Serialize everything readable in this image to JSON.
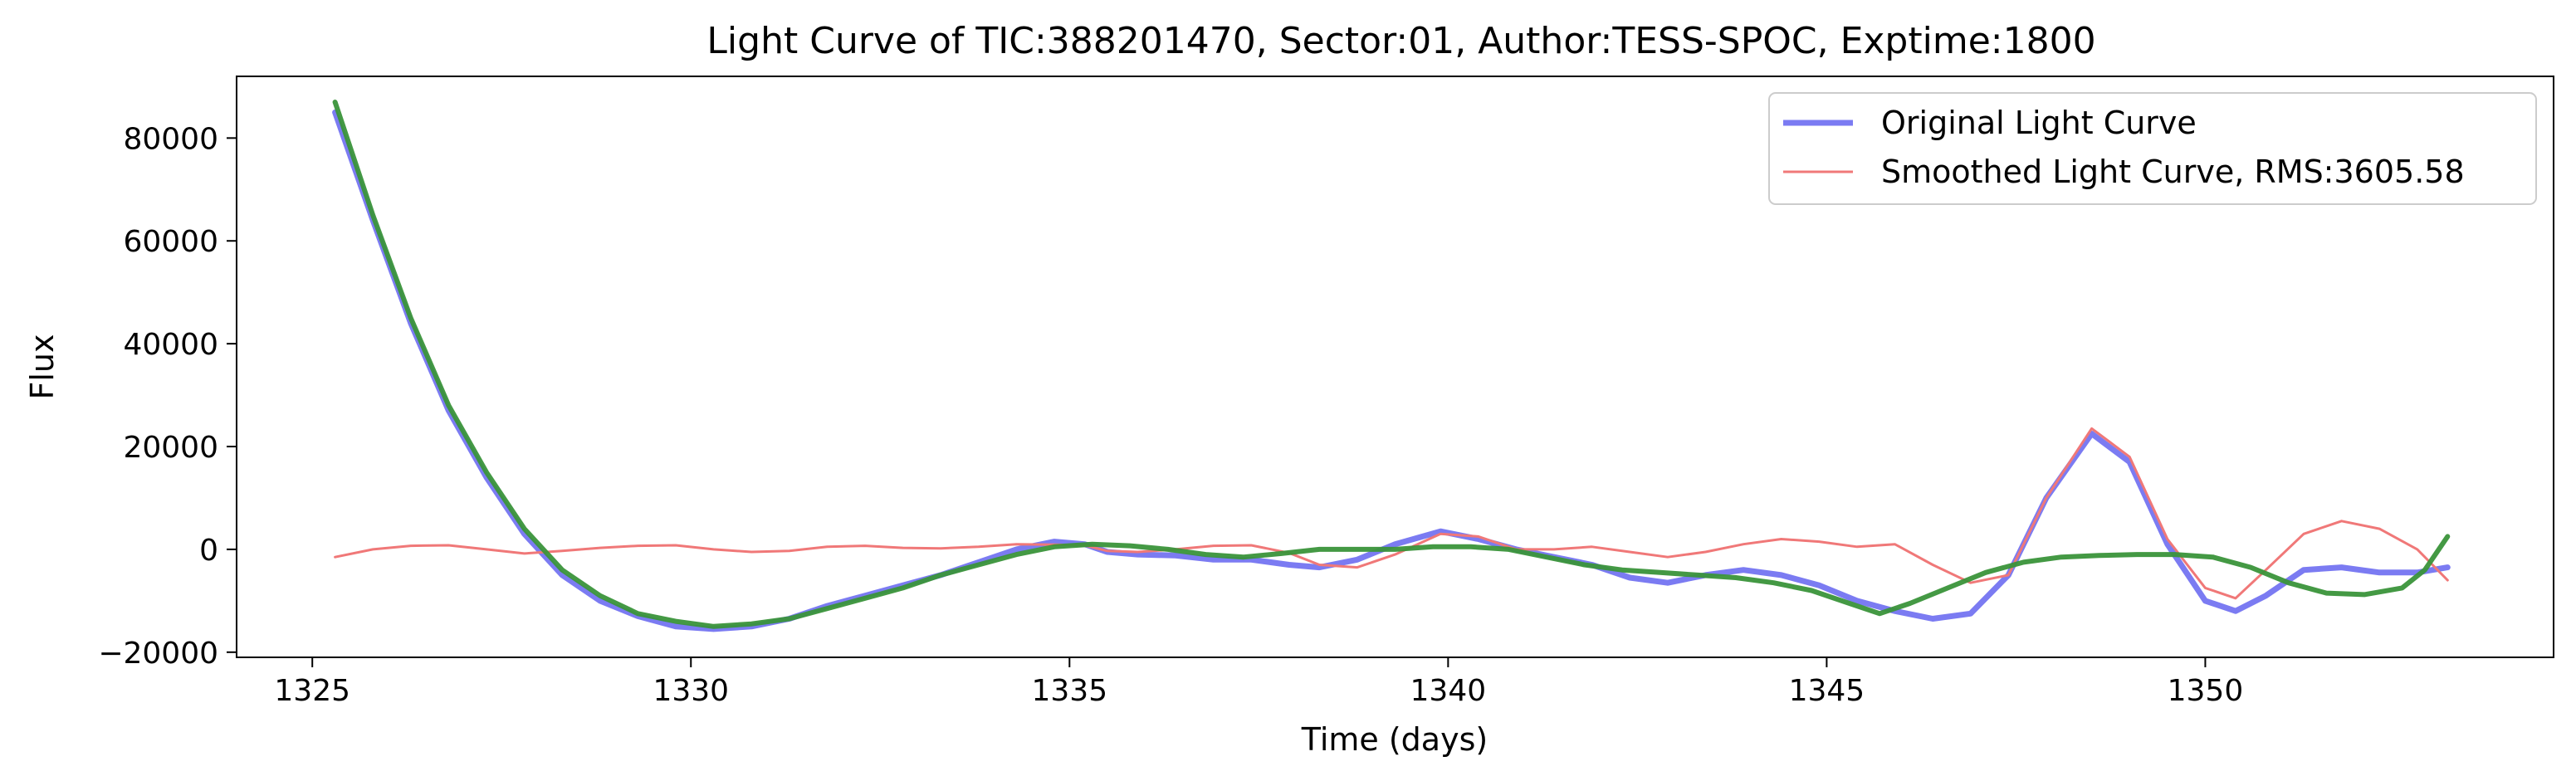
{
  "chart_data": {
    "type": "line",
    "title": "Light Curve of TIC:388201470, Sector:01, Author:TESS-SPOC, Exptime:1800",
    "xlabel": "Time (days)",
    "ylabel": "Flux",
    "xlim": [
      1324.0,
      1354.6
    ],
    "ylim": [
      -21000,
      92000
    ],
    "xticks": [
      1325,
      1330,
      1335,
      1340,
      1345,
      1350
    ],
    "yticks": [
      -20000,
      0,
      20000,
      40000,
      60000,
      80000
    ],
    "ytick_labels": [
      "−20000",
      "0",
      "20000",
      "40000",
      "60000",
      "80000"
    ],
    "grid": false,
    "legend_position": "upper right",
    "series": [
      {
        "name": "Original Light Curve",
        "color": "#7b7bf2",
        "x": [
          1325.3,
          1325.8,
          1326.3,
          1326.8,
          1327.3,
          1327.8,
          1328.3,
          1328.8,
          1329.3,
          1329.8,
          1330.3,
          1330.8,
          1331.3,
          1331.8,
          1332.3,
          1332.8,
          1333.3,
          1333.8,
          1334.3,
          1334.8,
          1335.2,
          1335.5,
          1335.9,
          1336.4,
          1336.9,
          1337.4,
          1337.9,
          1338.3,
          1338.8,
          1339.3,
          1339.9,
          1340.4,
          1340.9,
          1341.4,
          1341.9,
          1342.4,
          1342.9,
          1343.4,
          1343.9,
          1344.4,
          1344.9,
          1345.4,
          1345.9,
          1346.4,
          1346.9,
          1347.4,
          1347.9,
          1348.5,
          1349.0,
          1349.5,
          1350.0,
          1350.4,
          1350.8,
          1351.3,
          1351.8,
          1352.3,
          1352.8,
          1353.2
        ],
        "values": [
          85000,
          64000,
          44000,
          27000,
          14000,
          3000,
          -5000,
          -10000,
          -13000,
          -15000,
          -15500,
          -15000,
          -13500,
          -11000,
          -9000,
          -7000,
          -5000,
          -2500,
          0,
          1500,
          1000,
          -500,
          -1000,
          -1200,
          -2000,
          -2000,
          -3000,
          -3500,
          -2000,
          1000,
          3500,
          2000,
          0,
          -1500,
          -3000,
          -5500,
          -6500,
          -5000,
          -4000,
          -5000,
          -7000,
          -10000,
          -12000,
          -13500,
          -12500,
          -5000,
          10000,
          22500,
          17000,
          1000,
          -10000,
          -12000,
          -9000,
          -4000,
          -3500,
          -4500,
          -4500,
          -3500
        ]
      },
      {
        "name": "Smoothed Light Curve, RMS:3605.58",
        "color": "#f07878",
        "x": [
          1325.3,
          1325.8,
          1326.3,
          1326.8,
          1327.3,
          1327.8,
          1328.3,
          1328.8,
          1329.3,
          1329.8,
          1330.3,
          1330.8,
          1331.3,
          1331.8,
          1332.3,
          1332.8,
          1333.3,
          1333.8,
          1334.3,
          1334.8,
          1335.2,
          1335.5,
          1335.9,
          1336.4,
          1336.9,
          1337.4,
          1337.9,
          1338.3,
          1338.8,
          1339.3,
          1339.9,
          1340.4,
          1340.9,
          1341.4,
          1341.9,
          1342.4,
          1342.9,
          1343.4,
          1343.9,
          1344.4,
          1344.9,
          1345.4,
          1345.9,
          1346.4,
          1346.9,
          1347.4,
          1347.9,
          1348.5,
          1349.0,
          1349.5,
          1350.0,
          1350.4,
          1350.8,
          1351.3,
          1351.8,
          1352.3,
          1352.8,
          1353.2
        ],
        "values": [
          -1500,
          0,
          700,
          800,
          0,
          -800,
          -300,
          300,
          700,
          800,
          0,
          -500,
          -300,
          500,
          700,
          300,
          200,
          500,
          1000,
          900,
          800,
          -300,
          -500,
          0,
          700,
          800,
          -700,
          -3000,
          -3500,
          -1000,
          3000,
          2500,
          0,
          0,
          500,
          -500,
          -1500,
          -500,
          1000,
          2000,
          1500,
          500,
          1000,
          -3000,
          -6500,
          -5000,
          10000,
          23500,
          18000,
          2000,
          -7500,
          -9500,
          -4000,
          3000,
          5500,
          4000,
          0,
          -6000
        ]
      },
      {
        "name": "",
        "color": "#3a933a",
        "x": [
          1325.3,
          1325.8,
          1326.3,
          1326.8,
          1327.3,
          1327.8,
          1328.3,
          1328.8,
          1329.3,
          1329.8,
          1330.3,
          1330.8,
          1331.3,
          1331.8,
          1332.3,
          1332.8,
          1333.3,
          1333.8,
          1334.3,
          1334.8,
          1335.3,
          1335.8,
          1336.3,
          1336.8,
          1337.3,
          1337.8,
          1338.3,
          1338.8,
          1339.3,
          1339.8,
          1340.3,
          1340.8,
          1341.3,
          1341.8,
          1342.3,
          1342.8,
          1343.3,
          1343.8,
          1344.3,
          1344.8,
          1345.3,
          1345.7,
          1346.1,
          1346.6,
          1347.1,
          1347.6,
          1348.1,
          1348.6,
          1349.1,
          1349.6,
          1350.1,
          1350.6,
          1351.1,
          1351.6,
          1352.1,
          1352.6,
          1352.9,
          1353.2
        ],
        "values": [
          87000,
          65000,
          45000,
          28000,
          15000,
          4000,
          -4000,
          -9000,
          -12500,
          -14000,
          -15000,
          -14500,
          -13500,
          -11500,
          -9500,
          -7500,
          -5000,
          -3000,
          -1000,
          500,
          1000,
          700,
          0,
          -1000,
          -1500,
          -800,
          0,
          0,
          0,
          500,
          500,
          0,
          -1500,
          -3000,
          -4000,
          -4500,
          -5000,
          -5500,
          -6500,
          -8000,
          -10500,
          -12500,
          -10500,
          -7500,
          -4500,
          -2500,
          -1500,
          -1200,
          -1000,
          -1000,
          -1500,
          -3500,
          -6500,
          -8500,
          -8800,
          -7500,
          -4000,
          2500
        ]
      }
    ]
  }
}
